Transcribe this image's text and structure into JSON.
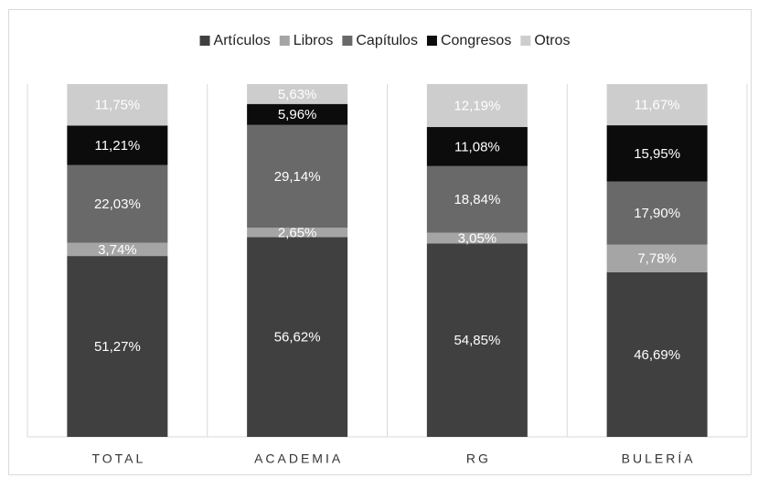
{
  "chart_data": {
    "type": "stacked_bar",
    "categories": [
      "TOTAL",
      "ACADEMIA",
      "RG",
      "BULERÍA"
    ],
    "series": [
      {
        "name": "Artículos",
        "color": "#404040",
        "values": [
          51.27,
          56.62,
          54.85,
          46.69
        ],
        "value_labels": [
          "51,27%",
          "56,62%",
          "54,85%",
          "46,69%"
        ]
      },
      {
        "name": "Libros",
        "color": "#a5a5a5",
        "values": [
          3.74,
          2.65,
          3.05,
          7.78
        ],
        "value_labels": [
          "3,74%",
          "2,65%",
          "3,05%",
          "7,78%"
        ]
      },
      {
        "name": "Capítulos",
        "color": "#696969",
        "values": [
          22.03,
          29.14,
          18.84,
          17.9
        ],
        "value_labels": [
          "22,03%",
          "29,14%",
          "18,84%",
          "17,90%"
        ]
      },
      {
        "name": "Congresos",
        "color": "#0c0c0c",
        "values": [
          11.21,
          5.96,
          11.08,
          15.95
        ],
        "value_labels": [
          "11,21%",
          "5,96%",
          "11,08%",
          "15,95%"
        ]
      },
      {
        "name": "Otros",
        "color": "#cdcdcd",
        "values": [
          11.75,
          5.63,
          12.19,
          11.67
        ],
        "value_labels": [
          "11,75%",
          "5,63%",
          "12,19%",
          "11,67%"
        ]
      }
    ],
    "ylim": [
      0,
      100
    ],
    "legend": "top"
  }
}
